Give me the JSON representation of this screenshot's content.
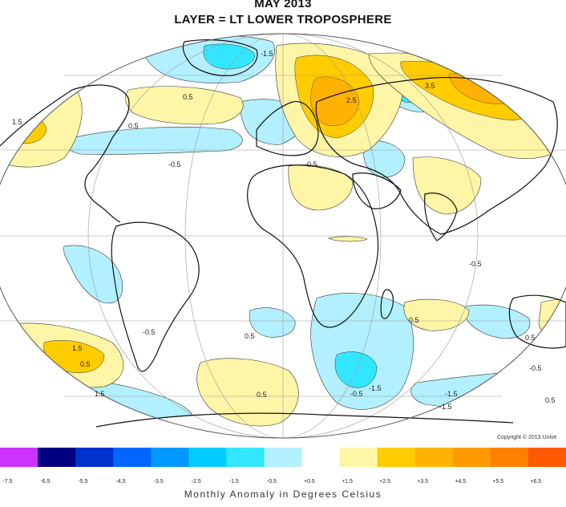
{
  "title": "MAY 2013",
  "subtitle": "LAYER = LT LOWER TROPOSPHERE",
  "copyright": "Copyright © 2013 Unive",
  "legend": {
    "unit_label": "Monthly Anomaly in Degrees Celsius",
    "tick_labels": [
      "-7.5",
      "-6.5",
      "-5.5",
      "-4.5",
      "-3.5",
      "-2.5",
      "-1.5",
      "-0.5",
      "+0.5",
      "+1.5",
      "+2.5",
      "+3.5",
      "+4.5",
      "+5.5",
      "+6.5"
    ],
    "bins": [
      {
        "color": "#cc33ff"
      },
      {
        "color": "#000080"
      },
      {
        "color": "#0033cc"
      },
      {
        "color": "#0066ff"
      },
      {
        "color": "#0099ff"
      },
      {
        "color": "#00ccff"
      },
      {
        "color": "#33e6ff"
      },
      {
        "color": "#b3f0ff"
      },
      {
        "color": "#ffffff"
      },
      {
        "color": "#fff5a6"
      },
      {
        "color": "#ffcc00"
      },
      {
        "color": "#ffb300"
      },
      {
        "color": "#ff9900"
      },
      {
        "color": "#ff8000"
      },
      {
        "color": "#ff5a00"
      }
    ]
  },
  "map": {
    "projection": "mollweide",
    "contour_labels": [
      "1.5",
      "0.5",
      "-0.5",
      "-1.5",
      "2.5",
      "3.5",
      "0.5",
      "-0.5",
      "1.5",
      "0.5",
      "-0.5",
      "1.5",
      "0.5",
      "-0.5",
      "-1.5",
      "-1.5",
      "0.5",
      "-0.5",
      "0.5",
      "-1.5",
      "0.5",
      "-0.5",
      "0.5"
    ]
  }
}
